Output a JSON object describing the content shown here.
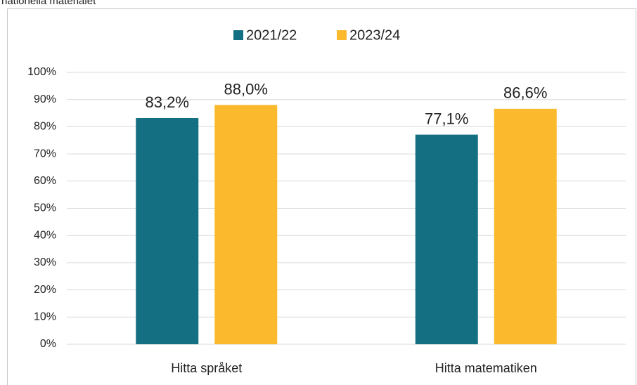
{
  "chart_data": {
    "type": "bar",
    "title": "nationella materialet",
    "categories": [
      "Hitta språket",
      "Hitta matematiken"
    ],
    "series": [
      {
        "name": "2021/22",
        "color": "#156f82",
        "values": [
          83.2,
          77.1
        ],
        "value_labels": [
          "83,2%",
          "77,1%"
        ]
      },
      {
        "name": "2023/24",
        "color": "#fbb92e",
        "values": [
          88.0,
          86.6
        ],
        "value_labels": [
          "88,0%",
          "86,6%"
        ]
      }
    ],
    "ylim": [
      0,
      100
    ],
    "yticks": [
      {
        "value": 0,
        "label": "0%"
      },
      {
        "value": 10,
        "label": "10%"
      },
      {
        "value": 20,
        "label": "20%"
      },
      {
        "value": 30,
        "label": "30%"
      },
      {
        "value": 40,
        "label": "40%"
      },
      {
        "value": 50,
        "label": "50%"
      },
      {
        "value": 60,
        "label": "60%"
      },
      {
        "value": 70,
        "label": "70%"
      },
      {
        "value": 80,
        "label": "80%"
      },
      {
        "value": 90,
        "label": "90%"
      },
      {
        "value": 100,
        "label": "100%"
      }
    ],
    "grid": true,
    "legend": "top"
  }
}
